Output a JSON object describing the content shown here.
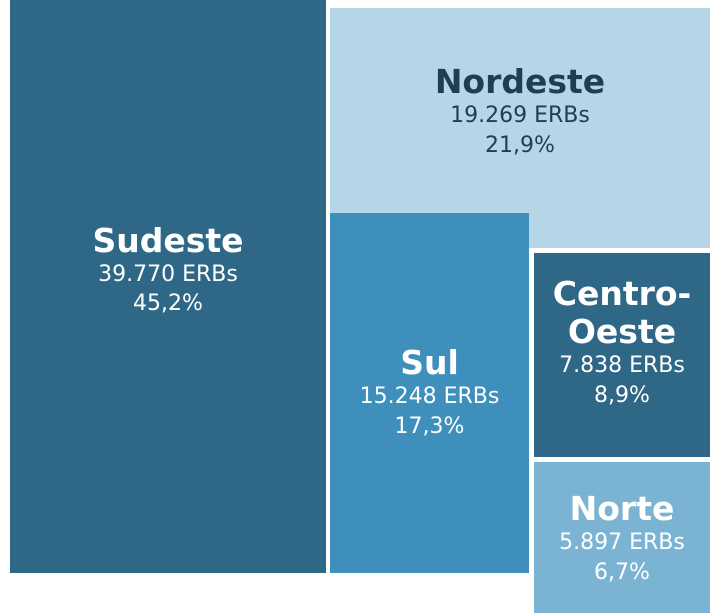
{
  "chart_data": {
    "type": "treemap",
    "categories": [
      "Sudeste",
      "Nordeste",
      "Sul",
      "Centro-Oeste",
      "Norte"
    ],
    "values": [
      39770,
      19269,
      15248,
      7838,
      5897
    ],
    "value_labels": [
      "39.770 ERBs",
      "19.269 ERBs",
      "15.248 ERBs",
      "7.838 ERBs",
      "5.897 ERBs"
    ],
    "shares": [
      45.2,
      21.9,
      17.3,
      8.9,
      6.7
    ],
    "share_labels": [
      "45,2%",
      "21,9%",
      "17,3%",
      "8,9%",
      "6,7%"
    ],
    "colors": [
      "#2e6886",
      "#b4d6e7",
      "#3e8fbc",
      "#2e6886",
      "#7bb4d2"
    ]
  }
}
